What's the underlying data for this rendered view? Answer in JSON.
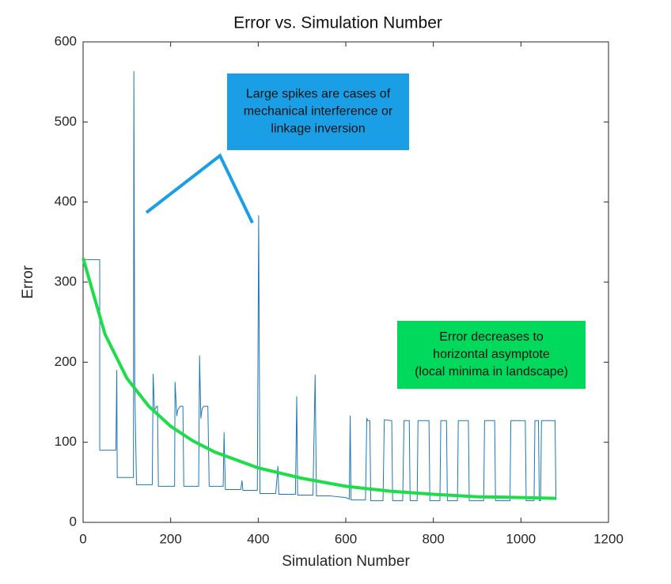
{
  "chart_data": {
    "type": "line",
    "title": "Error vs. Simulation Number",
    "xlabel": "Simulation Number",
    "ylabel": "Error",
    "xlim": [
      0,
      1200
    ],
    "xticks": [
      0,
      200,
      400,
      600,
      800,
      1000,
      1200
    ],
    "ylim": [
      0,
      600
    ],
    "yticks": [
      0,
      100,
      200,
      300,
      400,
      500,
      600
    ],
    "series": [
      {
        "color": "#1f77b4",
        "x": [
          0,
          38,
          38,
          75,
          77,
          78,
          115,
          116,
          118,
          122,
          158,
          160,
          163,
          168,
          170,
          172,
          209,
          210,
          214,
          216,
          222,
          228,
          230,
          264,
          266,
          269,
          272,
          276,
          285,
          288,
          320,
          322,
          325,
          360,
          363,
          365,
          398,
          401,
          404,
          440,
          445,
          447,
          485,
          488,
          490,
          525,
          530,
          533,
          565,
          600,
          608,
          610,
          612,
          645,
          648,
          650,
          655,
          657,
          685,
          688,
          705,
          707,
          730,
          733,
          745,
          747,
          763,
          765,
          790,
          792,
          815,
          817,
          830,
          832,
          855,
          857,
          880,
          882,
          915,
          917,
          940,
          942,
          975,
          977,
          1010,
          1012,
          1030,
          1032,
          1040,
          1042,
          1045,
          1047,
          1078,
          1080
        ],
        "values": [
          328,
          328,
          90,
          90,
          190,
          56,
          56,
          563,
          170,
          47,
          47,
          185,
          140,
          145,
          145,
          45,
          45,
          175,
          133,
          140,
          145,
          145,
          45,
          45,
          208,
          130,
          142,
          145,
          145,
          45,
          45,
          112,
          41,
          41,
          52,
          40,
          40,
          383,
          36,
          36,
          70,
          35,
          35,
          157,
          34,
          34,
          184,
          33,
          33,
          31,
          29,
          133,
          28,
          28,
          130,
          127,
          127,
          27,
          27,
          128,
          127,
          27,
          27,
          127,
          127,
          27,
          27,
          127,
          127,
          27,
          27,
          127,
          127,
          27,
          27,
          127,
          127,
          27,
          27,
          127,
          127,
          27,
          27,
          127,
          127,
          27,
          27,
          127,
          127,
          27,
          27,
          127,
          127,
          28
        ]
      },
      {
        "color": "#1edc4a",
        "x": [
          0,
          50,
          100,
          150,
          200,
          250,
          300,
          400,
          500,
          600,
          700,
          800,
          900,
          1000,
          1080
        ],
        "values": [
          330,
          235,
          180,
          145,
          120,
          102,
          88,
          68,
          55,
          45,
          39,
          35,
          32,
          31,
          30
        ]
      }
    ],
    "annotations": [
      {
        "text": [
          "Large spikes are cases of",
          "mechanical interference or",
          "linkage inversion"
        ],
        "color": "#1a9fe6"
      },
      {
        "text": [
          "Error decreases to",
          "horizontal asymptote",
          "(local minima in landscape)"
        ],
        "color": "#00d95c"
      }
    ]
  }
}
